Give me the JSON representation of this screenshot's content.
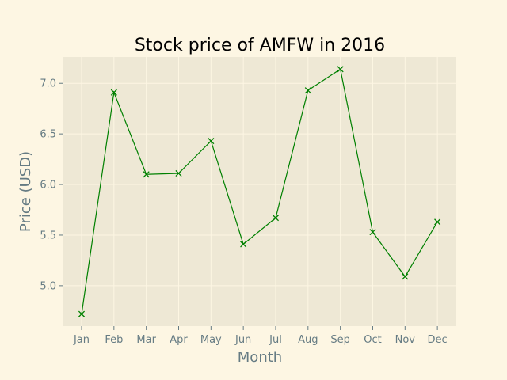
{
  "chart_data": {
    "type": "line",
    "title": "Stock price of AMFW in 2016",
    "xlabel": "Month",
    "ylabel": "Price (USD)",
    "categories": [
      "Jan",
      "Feb",
      "Mar",
      "Apr",
      "May",
      "Jun",
      "Jul",
      "Aug",
      "Sep",
      "Oct",
      "Nov",
      "Dec"
    ],
    "series": [
      {
        "values": [
          4.72,
          6.91,
          6.1,
          6.11,
          6.43,
          5.41,
          5.67,
          6.93,
          7.14,
          5.53,
          5.09,
          5.63
        ],
        "color": "#008000",
        "marker": "x"
      }
    ],
    "ylim": [
      4.6,
      7.26
    ],
    "yticks": [
      5.0,
      5.5,
      6.0,
      6.5,
      7.0
    ],
    "grid": true,
    "legend": "none",
    "colors": {
      "page_background": "#fdf6e3",
      "plot_background": "#eee8d5",
      "grid": "#fdf6e3",
      "tick_text": "#657b83",
      "title_text": "#000000"
    }
  }
}
